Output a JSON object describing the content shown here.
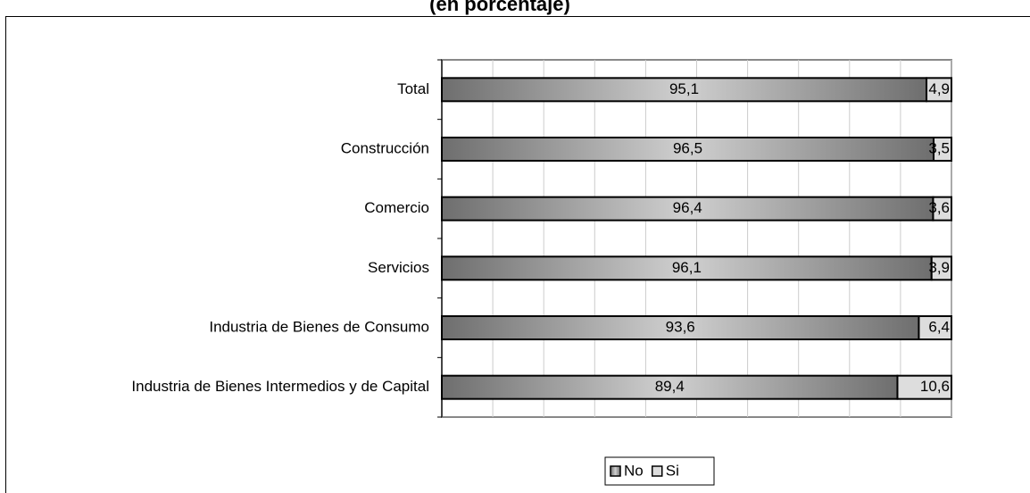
{
  "chart_data": {
    "type": "stacked_barh",
    "title": "(en porcentaje)",
    "categories": [
      "Total",
      "Construcción",
      "Comercio",
      "Servicios",
      "Industria de Bienes de Consumo",
      "Industria de Bienes Intermedios y de Capital"
    ],
    "series": [
      {
        "name": "No",
        "color": "#999999",
        "values": [
          95.1,
          96.5,
          96.4,
          96.1,
          93.6,
          89.4
        ],
        "value_labels": [
          "95,1",
          "96,5",
          "96,4",
          "96,1",
          "93,6",
          "89,4"
        ]
      },
      {
        "name": "Si",
        "color": "#dddddd",
        "values": [
          4.9,
          3.5,
          3.6,
          3.9,
          6.4,
          10.6
        ],
        "value_labels": [
          "4,9",
          "3,5",
          "3,6",
          "3,9",
          "6,4",
          "10,6"
        ]
      }
    ],
    "xlim": [
      0,
      100
    ],
    "xticks": [
      0,
      10,
      20,
      30,
      40,
      50,
      60,
      70,
      80,
      90,
      100
    ],
    "grid": true,
    "legend": "bottom"
  }
}
